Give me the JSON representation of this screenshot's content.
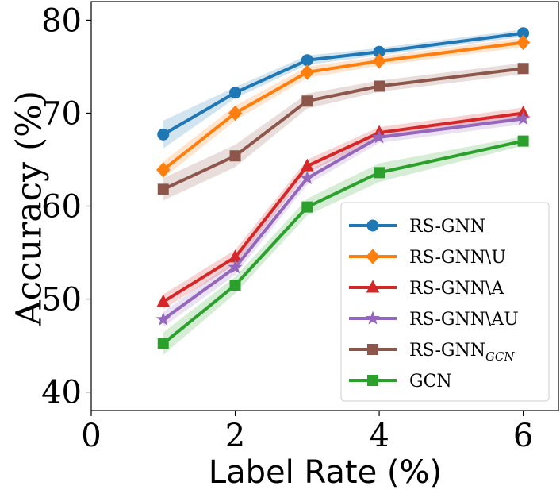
{
  "chart_data": {
    "type": "line",
    "xlabel": "Label Rate (%)",
    "ylabel": "Accuracy (%)",
    "xlim": [
      0,
      6.5
    ],
    "ylim": [
      38,
      82
    ],
    "xticks": [
      0,
      2,
      4,
      6
    ],
    "yticks": [
      40,
      50,
      60,
      70,
      80
    ],
    "grid": false,
    "legend": "lower right",
    "x": [
      1,
      2,
      3,
      4,
      6
    ],
    "series": [
      {
        "name": "RS-GNN",
        "color": "#1f77b4",
        "marker": "circle",
        "values": [
          67.7,
          72.2,
          75.7,
          76.6,
          78.6
        ],
        "std": [
          1.5,
          0.6,
          0.5,
          0.4,
          0.4
        ]
      },
      {
        "name": "RS-GNN\\U",
        "color": "#ff7f0e",
        "marker": "diamond",
        "values": [
          63.9,
          70.0,
          74.4,
          75.6,
          77.6
        ],
        "std": [
          0.9,
          0.8,
          0.6,
          0.5,
          0.5
        ]
      },
      {
        "name": "RS-GNN\\A",
        "color": "#d62728",
        "marker": "triangle",
        "values": [
          49.7,
          54.5,
          64.3,
          67.9,
          70.0
        ],
        "std": [
          0.8,
          0.8,
          0.7,
          0.6,
          0.6
        ]
      },
      {
        "name": "RS-GNN\\AU",
        "color": "#9467bd",
        "marker": "star",
        "values": [
          47.8,
          53.4,
          63.0,
          67.4,
          69.4
        ],
        "std": [
          0.8,
          0.8,
          0.7,
          0.6,
          0.6
        ]
      },
      {
        "name": "RS-GNN",
        "name_sub": "GCN",
        "color": "#8c564b",
        "marker": "square",
        "values": [
          61.8,
          65.4,
          71.3,
          72.9,
          74.8
        ],
        "std": [
          1.2,
          1.2,
          0.8,
          0.6,
          0.6
        ]
      },
      {
        "name": "GCN",
        "color": "#2ca02c",
        "marker": "square",
        "values": [
          45.2,
          51.5,
          59.9,
          63.6,
          67.0
        ],
        "std": [
          1.2,
          0.9,
          0.9,
          1.0,
          0.5
        ]
      }
    ]
  }
}
